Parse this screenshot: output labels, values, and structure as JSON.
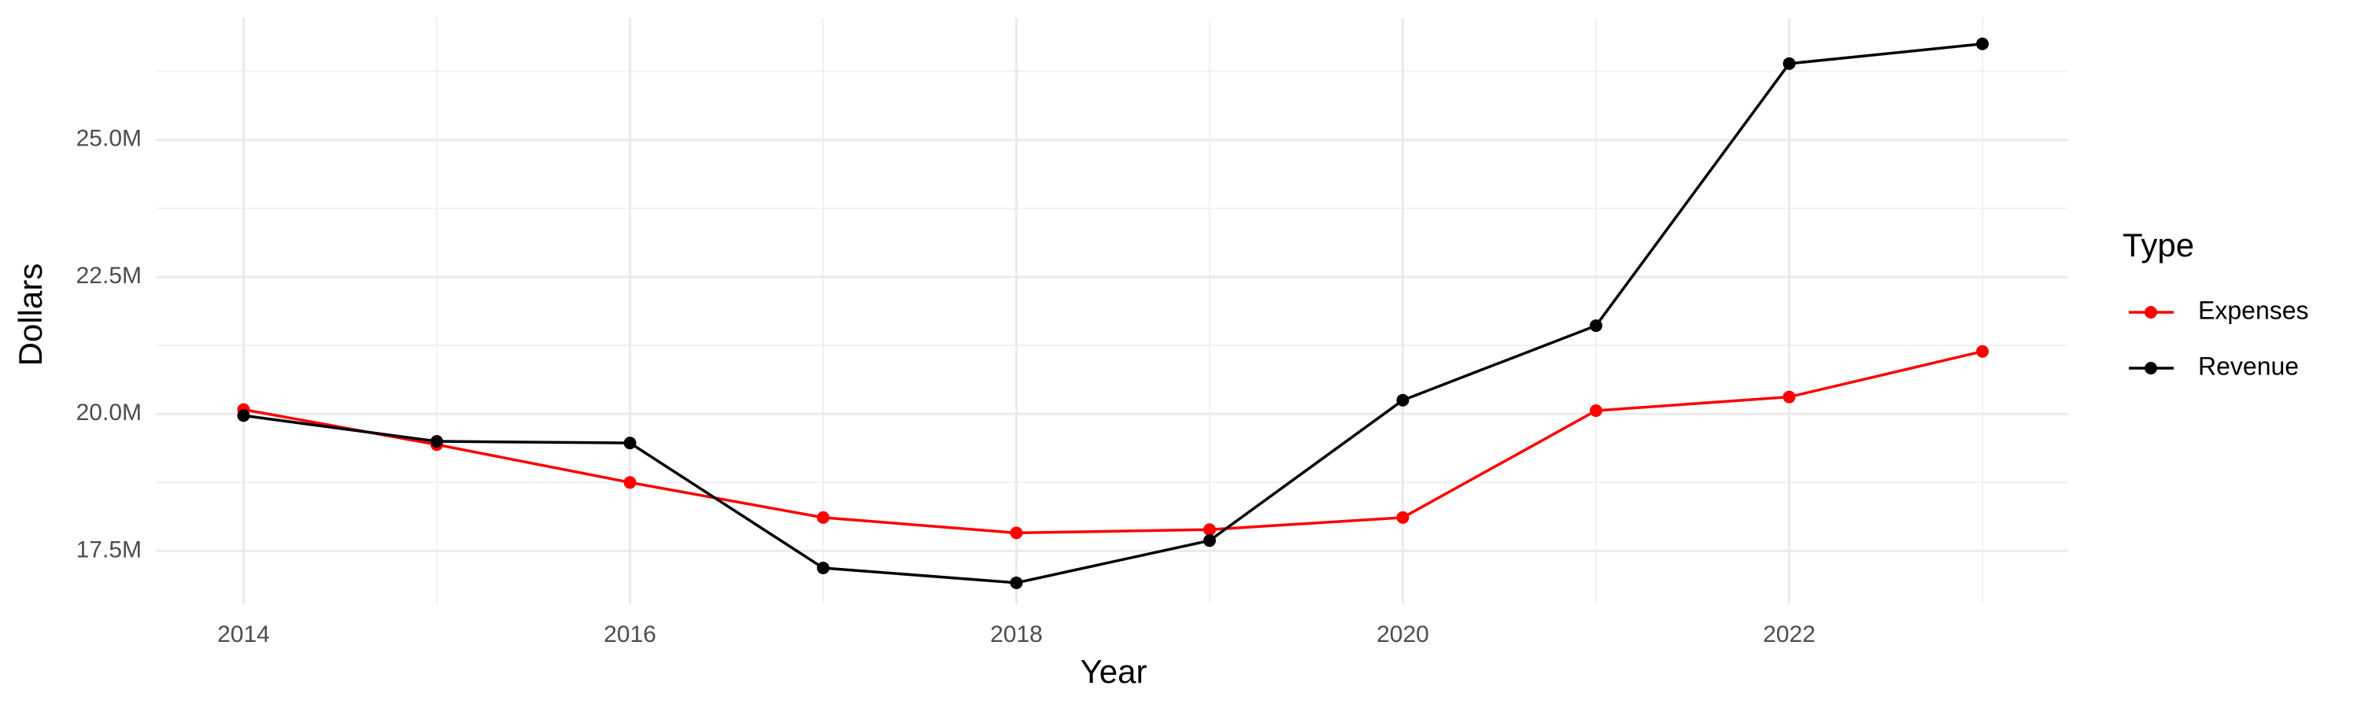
{
  "chart_data": {
    "type": "line",
    "x_label": "Year",
    "y_label": "Dollars",
    "legend_title": "Type",
    "legend_position": "right",
    "grid": true,
    "x": [
      2014,
      2015,
      2016,
      2017,
      2018,
      2019,
      2020,
      2021,
      2022,
      2023
    ],
    "xlim": [
      2013.55,
      2023.44
    ],
    "xticks": [
      2014,
      2016,
      2018,
      2020,
      2022
    ],
    "ylim": [
      16530000,
      27220000
    ],
    "yticks": [
      {
        "value": 17500000,
        "label": "17.5M"
      },
      {
        "value": 20000000,
        "label": "20.0M"
      },
      {
        "value": 22500000,
        "label": "22.5M"
      },
      {
        "value": 25000000,
        "label": "25.0M"
      }
    ],
    "series": [
      {
        "name": "Expenses",
        "color": "#ff0000",
        "values": [
          20080000,
          19440000,
          18750000,
          18110000,
          17830000,
          17890000,
          18110000,
          20060000,
          20310000,
          21140000
        ]
      },
      {
        "name": "Revenue",
        "color": "#000000",
        "values": [
          19970000,
          19500000,
          19470000,
          17190000,
          16920000,
          17690000,
          20250000,
          21610000,
          26390000,
          26750000
        ]
      }
    ]
  }
}
